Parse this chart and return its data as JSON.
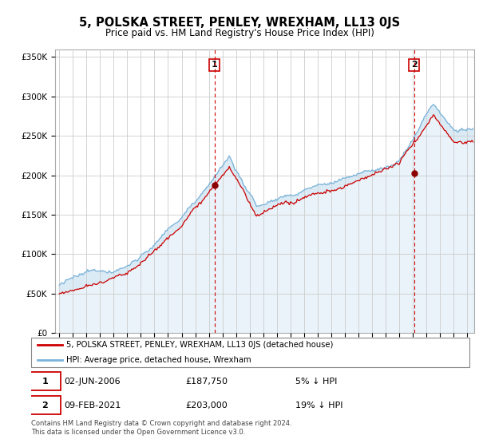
{
  "title": "5, POLSKA STREET, PENLEY, WREXHAM, LL13 0JS",
  "subtitle": "Price paid vs. HM Land Registry's House Price Index (HPI)",
  "ytick_values": [
    0,
    50000,
    100000,
    150000,
    200000,
    250000,
    300000,
    350000
  ],
  "ylim": [
    0,
    360000
  ],
  "xlim_start": 1994.7,
  "xlim_end": 2025.5,
  "sale1_date": 2006.42,
  "sale1_price": 187750,
  "sale1_label": "1",
  "sale2_date": 2021.08,
  "sale2_price": 203000,
  "sale2_label": "2",
  "hpi_color": "#7ab3d9",
  "hpi_fill_color": "#d6e8f5",
  "price_color": "#cc0000",
  "dashed_color": "#cc0000",
  "legend_entry1": "5, POLSKA STREET, PENLEY, WREXHAM, LL13 0JS (detached house)",
  "legend_entry2": "HPI: Average price, detached house, Wrexham",
  "annotation1_date": "02-JUN-2006",
  "annotation1_price": "£187,750",
  "annotation1_hpi": "5% ↓ HPI",
  "annotation2_date": "09-FEB-2021",
  "annotation2_price": "£203,000",
  "annotation2_hpi": "19% ↓ HPI",
  "footer": "Contains HM Land Registry data © Crown copyright and database right 2024.\nThis data is licensed under the Open Government Licence v3.0.",
  "background_color": "#ffffff",
  "grid_color": "#cccccc"
}
